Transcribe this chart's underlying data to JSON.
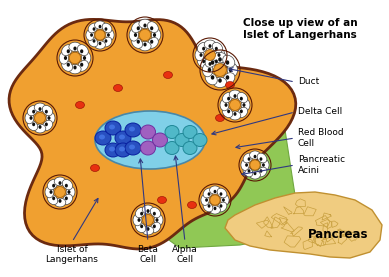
{
  "bg_color": "#ffffff",
  "main_blob_color": "#f0a030",
  "main_blob_outline": "#6b2a10",
  "acini_white": "#ffffff",
  "orange_center": "#f0a030",
  "red_blood_cell": "#e83010",
  "islet_bg": "#80d0e8",
  "beta_cell_color": "#2850c0",
  "delta_cell_color": "#a060c0",
  "alpha_cell_color": "#50b8c8",
  "green_patch_color": "#90c855",
  "green_patch_dark": "#70a840",
  "pancreas_body_color": "#f0cc80",
  "pancreas_outline": "#c09030",
  "pancreas_cell_line": "#c8a040",
  "text_label_color": "#000000",
  "arrow_color": "#303880",
  "title_text": "Close up view of an\nIslet of Langerhans",
  "label_pancreas": "Pancreas",
  "label_islet": "Islet of\nLangerhans",
  "label_beta": "Beta\nCell",
  "label_alpha": "Alpha\nCell",
  "label_duct": "Duct",
  "label_delta": "Delta Cell",
  "label_rbc": "Red Blood\nCell",
  "label_acini": "Pancreatic\nAcini"
}
